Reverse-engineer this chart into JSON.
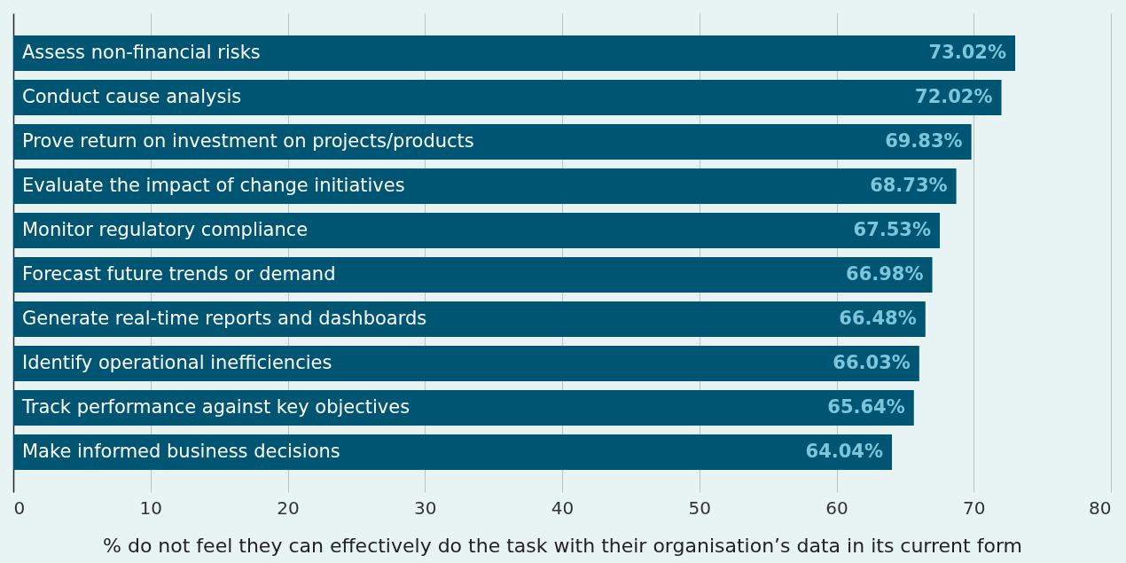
{
  "chart_data": {
    "type": "bar",
    "orientation": "horizontal",
    "xlabel": "% do not feel they can effectively do the task with their organisation’s data in its current form",
    "categories": [
      "Assess non-financial risks",
      "Conduct cause analysis",
      "Prove return on investment on projects/products",
      "Evaluate the impact of change initiatives",
      "Monitor regulatory compliance",
      "Forecast future trends or demand",
      "Generate real-time reports and dashboards",
      "Identify operational inefficiencies",
      "Track performance against key objectives",
      "Make informed business decisions"
    ],
    "values": [
      73.02,
      72.02,
      69.83,
      68.73,
      67.53,
      66.98,
      66.48,
      66.03,
      65.64,
      64.04
    ],
    "value_labels": [
      "73.02%",
      "72.02%",
      "69.83%",
      "68.73%",
      "67.53%",
      "66.98%",
      "66.48%",
      "66.03%",
      "65.64%",
      "64.04%"
    ],
    "color": "#005572",
    "xlim": [
      0,
      80
    ],
    "xticks": [
      0,
      10,
      20,
      30,
      40,
      50,
      60,
      70,
      80
    ],
    "grid": "x"
  }
}
